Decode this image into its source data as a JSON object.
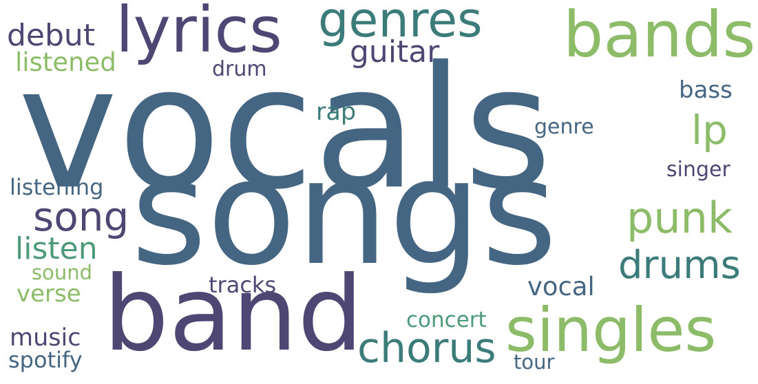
{
  "words": [
    {
      "text": "vocals",
      "color": "#456682"
    },
    {
      "text": "songs",
      "color": "#456682"
    },
    {
      "text": "band",
      "color": "#4e4673"
    },
    {
      "text": "lyrics",
      "color": "#4e4673"
    },
    {
      "text": "bands",
      "color": "#8cbc67"
    },
    {
      "text": "genres",
      "color": "#3b7b7a"
    },
    {
      "text": "singles",
      "color": "#8cbc67"
    },
    {
      "text": "chorus",
      "color": "#3b7b7a"
    },
    {
      "text": "punk",
      "color": "#8cbc67"
    },
    {
      "text": "drums",
      "color": "#3b7b7a"
    },
    {
      "text": "song",
      "color": "#4e4673"
    },
    {
      "text": "lp",
      "color": "#8cbc67"
    },
    {
      "text": "listen",
      "color": "#4c9a7a"
    },
    {
      "text": "guitar",
      "color": "#4e4673"
    },
    {
      "text": "debut",
      "color": "#4e4673"
    },
    {
      "text": "listened",
      "color": "#8cbc67"
    },
    {
      "text": "vocal",
      "color": "#456682"
    },
    {
      "text": "tracks",
      "color": "#4e4673"
    },
    {
      "text": "music",
      "color": "#4e4673"
    },
    {
      "text": "spotify",
      "color": "#456682"
    },
    {
      "text": "concert",
      "color": "#4c9a7a"
    },
    {
      "text": "verse",
      "color": "#8cbc67"
    },
    {
      "text": "listening",
      "color": "#456682"
    },
    {
      "text": "rap",
      "color": "#3b7b7a"
    },
    {
      "text": "bass",
      "color": "#456682"
    },
    {
      "text": "singer",
      "color": "#4e4673"
    },
    {
      "text": "genre",
      "color": "#456682"
    },
    {
      "text": "sound",
      "color": "#8cbc67"
    },
    {
      "text": "drum",
      "color": "#4e4673"
    },
    {
      "text": "tour",
      "color": "#456682"
    }
  ]
}
